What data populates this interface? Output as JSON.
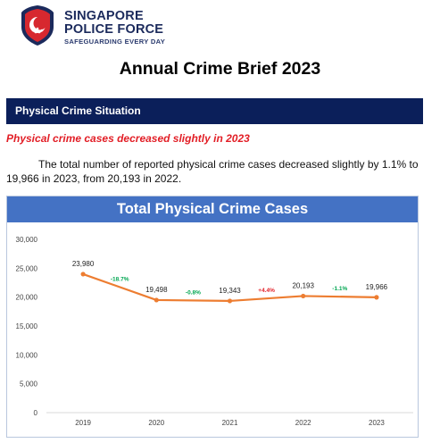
{
  "header": {
    "brand_line1": "SINGAPORE",
    "brand_line2": "POLICE FORCE",
    "tagline": "SAFEGUARDING EVERY DAY"
  },
  "report_title": "Annual Crime Brief 2023",
  "section": {
    "title": "Physical Crime Situation"
  },
  "subheading": "Physical crime cases decreased slightly in 2023",
  "paragraph": "The total number of reported physical crime cases decreased slightly by 1.1% to 19,966 in 2023, from 20,193 in 2022.",
  "colors": {
    "navy": "#0b1f5a",
    "chart_header": "#4472c4",
    "line": "#ed7d31",
    "subheading_red": "#e21e26",
    "decrease_green": "#00a651",
    "increase_red": "#e21e26"
  },
  "chart_data": {
    "type": "line",
    "title": "Total Physical Crime Cases",
    "categories": [
      "2019",
      "2020",
      "2021",
      "2022",
      "2023"
    ],
    "series": [
      {
        "values": [
          23980,
          19498,
          19343,
          20193,
          19966
        ]
      }
    ],
    "data_labels": [
      "23,980",
      "19,498",
      "19,343",
      "20,193",
      "19,966"
    ],
    "changes": [
      {
        "label": "-18.7%",
        "direction": "down"
      },
      {
        "label": "-0.8%",
        "direction": "down"
      },
      {
        "label": "+4.4%",
        "direction": "up"
      },
      {
        "label": "-1.1%",
        "direction": "down"
      }
    ],
    "y_ticks": [
      "0",
      "5,000",
      "10,000",
      "15,000",
      "20,000",
      "25,000",
      "30,000"
    ],
    "ylim": [
      0,
      30000
    ],
    "grid": false,
    "xlabel": "",
    "ylabel": ""
  }
}
